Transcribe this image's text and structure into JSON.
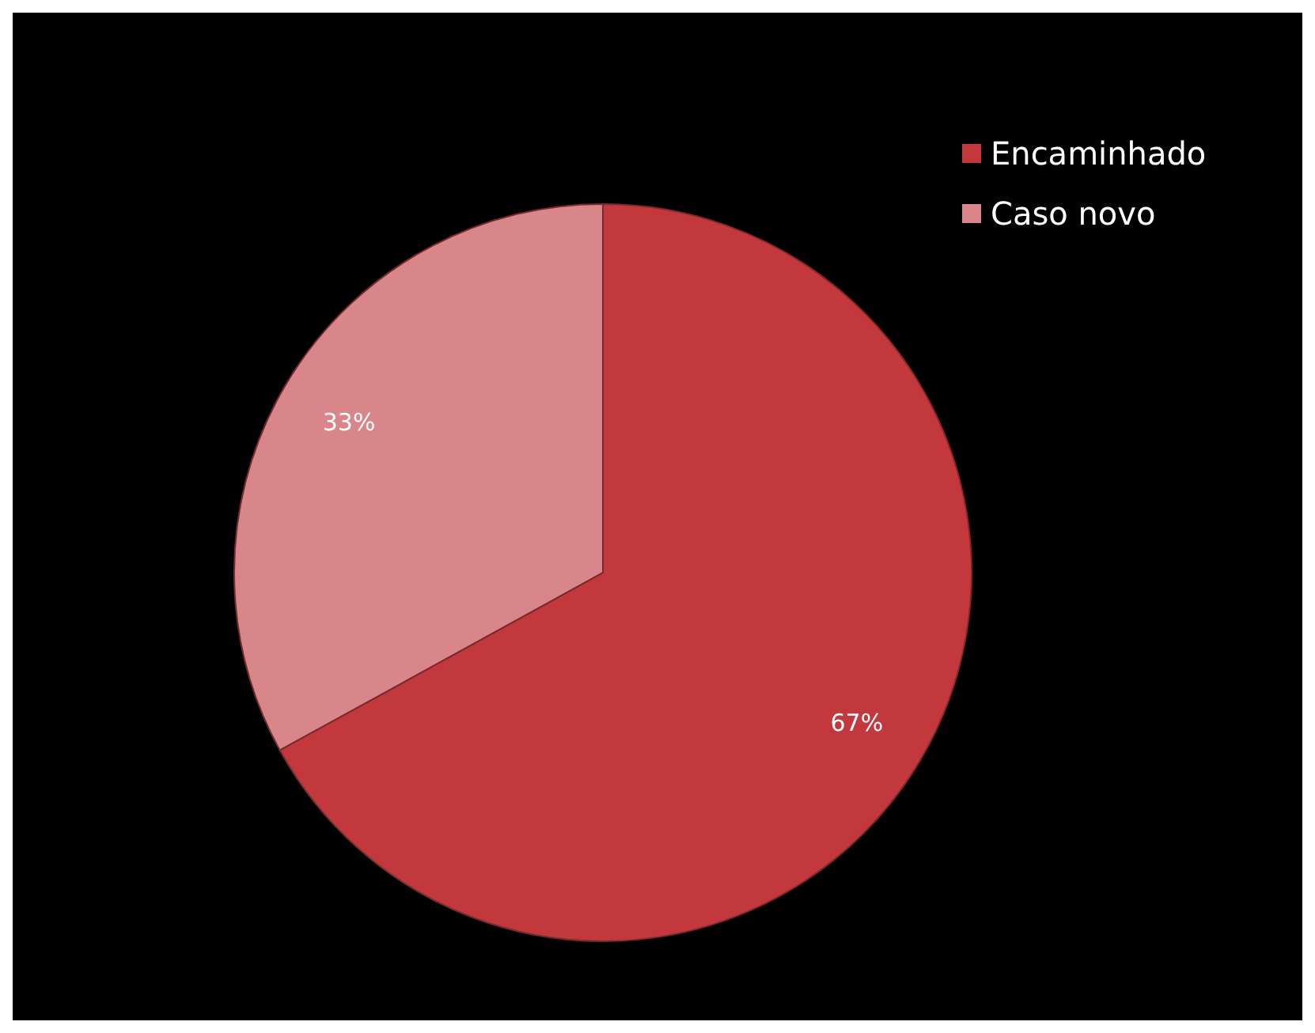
{
  "chart_data": {
    "type": "pie",
    "categories": [
      "Encaminhado",
      "Caso novo"
    ],
    "values": [
      67,
      33
    ],
    "colors": [
      "#c3383c",
      "#d9868b"
    ],
    "value_labels": [
      "67%",
      "33%"
    ],
    "legend": "top right"
  }
}
